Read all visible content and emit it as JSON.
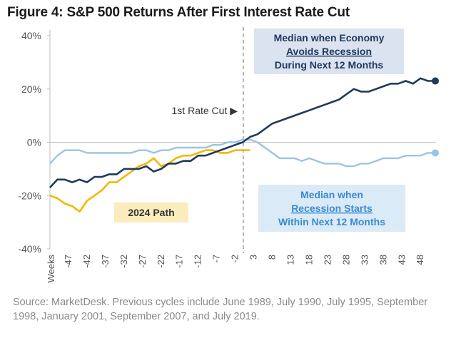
{
  "title": "Figure 4: S&P 500 Returns After First Interest Rate Cut",
  "source_text": "Source: MarketDesk. Previous cycles include June 1989, July 1990, July 1995, September 1998, January 2001, September 2007, and July 2019.",
  "colors": {
    "no_recession": "#1e3a5f",
    "recession": "#9cc3e6",
    "path_2024": "#f2b800",
    "box_no_recession": "#dbe3f0",
    "box_recession": "#dbeaf7",
    "box_2024": "#fbecbc",
    "text_no_recession": "#1e3a5f",
    "text_recession": "#3a8bd0"
  },
  "chart_data": {
    "type": "line",
    "title": "Figure 4: S&P 500 Returns After First Interest Rate Cut",
    "xlabel": "Weeks",
    "ylabel": "",
    "xlim": [
      -52,
      52
    ],
    "ylim": [
      -40,
      40
    ],
    "y_ticks": [
      40,
      20,
      0,
      -20,
      -40
    ],
    "y_tick_labels": [
      "40%",
      "20%",
      "0%",
      "-20%",
      "-40%"
    ],
    "x_ticks": [
      -47,
      -42,
      -37,
      -32,
      -27,
      -22,
      -17,
      -12,
      -7,
      -2,
      3,
      8,
      13,
      18,
      23,
      28,
      33,
      38,
      43,
      48
    ],
    "x_tick_labels": [
      "-47",
      "-42",
      "-37",
      "-32",
      "-27",
      "-22",
      "-17",
      "-12",
      "-7",
      "-2",
      "3",
      "8",
      "13",
      "18",
      "23",
      "28",
      "33",
      "38",
      "43",
      "48"
    ],
    "x_axis_title_label": "Weeks",
    "event_line": {
      "x": 0,
      "label": "1st Rate Cut ▶"
    },
    "annotations": [
      {
        "id": "no-recession-label",
        "lines": [
          "Median when Economy",
          "Avoids Recession",
          "During Next 12 Months"
        ],
        "underline_line": 1
      },
      {
        "id": "recession-label",
        "lines": [
          "Median when",
          "Recession Starts",
          "Within Next 12 Months"
        ],
        "underline_line": 1
      },
      {
        "id": "path-2024-label",
        "lines": [
          "2024 Path"
        ]
      }
    ],
    "series": [
      {
        "name": "Median when Economy Avoids Recession During Next 12 Months",
        "x": [
          -52,
          -50,
          -48,
          -46,
          -44,
          -42,
          -40,
          -38,
          -36,
          -34,
          -32,
          -30,
          -28,
          -26,
          -24,
          -22,
          -20,
          -18,
          -16,
          -14,
          -12,
          -10,
          -8,
          -6,
          -4,
          -2,
          0,
          2,
          4,
          6,
          8,
          10,
          12,
          14,
          16,
          18,
          20,
          22,
          24,
          26,
          28,
          30,
          32,
          34,
          36,
          38,
          40,
          42,
          44,
          46,
          48,
          50,
          52
        ],
        "values": [
          -17,
          -14,
          -14,
          -15,
          -14,
          -15,
          -13,
          -13,
          -12,
          -12,
          -10,
          -10,
          -10,
          -9,
          -11,
          -10,
          -8,
          -8,
          -7,
          -7,
          -5,
          -5,
          -4,
          -3,
          -2,
          -1,
          0,
          2,
          3,
          5,
          7,
          8,
          9,
          10,
          11,
          12,
          13,
          14,
          15,
          16,
          18,
          20,
          19,
          19,
          20,
          21,
          22,
          22,
          23,
          22,
          24,
          23,
          23
        ]
      },
      {
        "name": "Median when Recession Starts Within Next 12 Months",
        "x": [
          -52,
          -50,
          -48,
          -46,
          -44,
          -42,
          -40,
          -38,
          -36,
          -34,
          -32,
          -30,
          -28,
          -26,
          -24,
          -22,
          -20,
          -18,
          -16,
          -14,
          -12,
          -10,
          -8,
          -6,
          -4,
          -2,
          0,
          2,
          4,
          6,
          8,
          10,
          12,
          14,
          16,
          18,
          20,
          22,
          24,
          26,
          28,
          30,
          32,
          34,
          36,
          38,
          40,
          42,
          44,
          46,
          48,
          50,
          52
        ],
        "values": [
          -8,
          -5,
          -3,
          -3,
          -3,
          -4,
          -4,
          -4,
          -4,
          -4,
          -4,
          -4,
          -3,
          -3,
          -4,
          -3,
          -3,
          -2,
          -2,
          -2,
          -2,
          -2,
          -1,
          -1,
          0,
          0,
          1,
          1,
          0,
          -2,
          -4,
          -6,
          -6,
          -6,
          -7,
          -6,
          -7,
          -8,
          -8,
          -8,
          -9,
          -9,
          -8,
          -8,
          -7,
          -6,
          -6,
          -6,
          -5,
          -5,
          -5,
          -4,
          -4
        ]
      },
      {
        "name": "2024 Path",
        "x": [
          -52,
          -50,
          -48,
          -46,
          -44,
          -42,
          -40,
          -38,
          -36,
          -34,
          -32,
          -30,
          -28,
          -26,
          -24,
          -22,
          -20,
          -18,
          -16,
          -14,
          -12,
          -10,
          -8,
          -6,
          -4,
          -2,
          0,
          2
        ],
        "values": [
          -20,
          -21,
          -23,
          -24,
          -26,
          -22,
          -20,
          -18,
          -15,
          -15,
          -13,
          -11,
          -9,
          -8,
          -6,
          -9,
          -8,
          -6,
          -5,
          -5,
          -4,
          -3,
          -3,
          -4,
          -4,
          -3,
          -3,
          -3
        ]
      }
    ],
    "endpoints": [
      {
        "series": 0,
        "x": 52,
        "value": 23
      },
      {
        "series": 1,
        "x": 52,
        "value": -4
      }
    ]
  }
}
